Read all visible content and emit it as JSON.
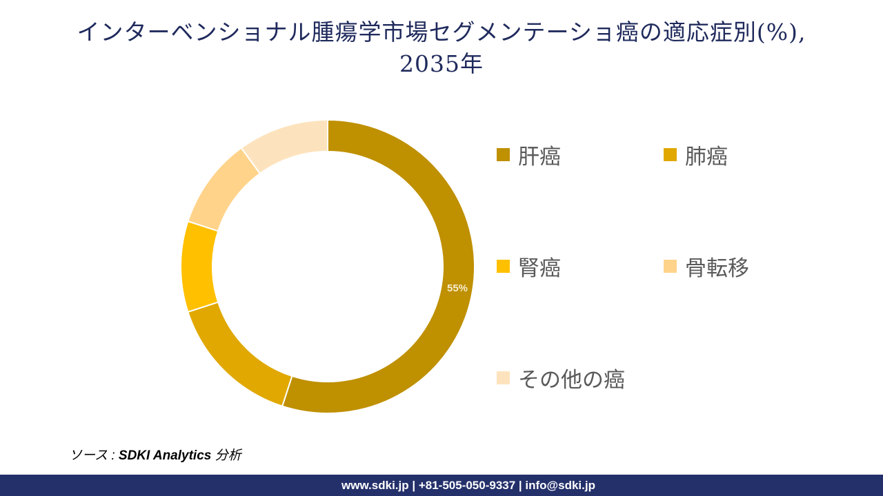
{
  "title": {
    "line1": "インターベンショナル腫瘍学市場セグメンテーショ癌の適応症別(%),",
    "line2": "2035年"
  },
  "chart_data": {
    "type": "pie",
    "variant": "donut",
    "title": "インターベンショナル腫瘍学市場セグメンテーショ癌の適応症別(%), 2035年",
    "categories": [
      "肝癌",
      "肺癌",
      "腎癌",
      "骨転移",
      "その他の癌"
    ],
    "values": [
      55,
      15,
      10,
      10,
      10
    ],
    "colors": [
      "#bf9000",
      "#e0a800",
      "#ffc000",
      "#ffd38a",
      "#fde3bd"
    ],
    "data_labels": [
      "55%",
      "",
      "",
      "",
      ""
    ],
    "legend_position": "right",
    "unit": "%"
  },
  "legend": [
    {
      "label": "肝癌",
      "color": "#bf9000"
    },
    {
      "label": "肺癌",
      "color": "#e0a800"
    },
    {
      "label": "腎癌",
      "color": "#ffc000"
    },
    {
      "label": "骨転移",
      "color": "#ffd38a"
    },
    {
      "label": "その他の癌",
      "color": "#fde3bd"
    }
  ],
  "slice_label": "55%",
  "source": {
    "prefix": "ソース : ",
    "name": "SDKI Analytics",
    "suffix": " 分析"
  },
  "footer": {
    "text": "www.sdki.jp | +81-505-050-9337 | info@sdki.jp"
  }
}
